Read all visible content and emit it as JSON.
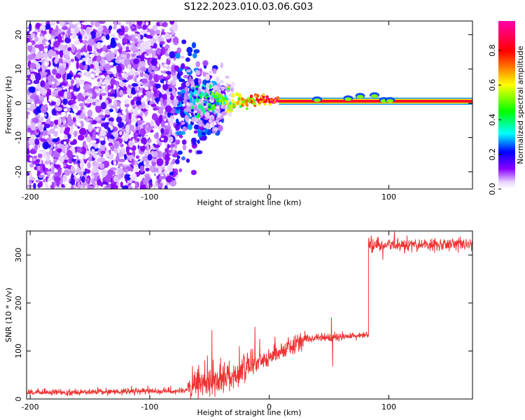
{
  "title": "S122.2023.010.03.06.G03",
  "chart_data": [
    {
      "type": "heatmap",
      "xlabel": "Height of straight line (km)",
      "ylabel": "Frequency (Hz)",
      "xlim": [
        -203,
        170
      ],
      "ylim": [
        -25,
        24
      ],
      "xticks": [
        -200,
        -100,
        0,
        100
      ],
      "yticks": [
        -20,
        -10,
        0,
        10,
        20
      ],
      "colorbar": {
        "label": "Normalized spectral amplitude",
        "ticks": [
          "0.0",
          "0.2",
          "0.4",
          "0.6",
          "0.8"
        ],
        "tick_values": [
          0,
          0.2,
          0.4,
          0.6,
          0.8
        ],
        "range": [
          0,
          0.97
        ],
        "colormap": [
          "#ffffff",
          "#e9d6ff",
          "#8a00ff",
          "#0000ff",
          "#00ffff",
          "#00ff00",
          "#ffff00",
          "#ff0000",
          "#ff00aa"
        ]
      },
      "regions": [
        {
          "x": [
            -203,
            -78
          ],
          "freq_spread": [
            -25,
            24
          ],
          "amplitude": "0.05-0.25",
          "pattern": "scattered noise"
        },
        {
          "x": [
            -78,
            -40
          ],
          "freq_spread": [
            -7,
            5
          ],
          "amplitude": "0.1-0.4",
          "pattern": "scattered noise"
        },
        {
          "x": [
            -40,
            10
          ],
          "freq_spread": [
            -1,
            3
          ],
          "amplitude": "0.3-0.9",
          "pattern": "converging tone"
        },
        {
          "x": [
            10,
            170
          ],
          "freq_center": 0.5,
          "amplitude": "0.9-1.0",
          "pattern": "steady tone"
        }
      ]
    },
    {
      "type": "line",
      "xlabel": "Height of straight line (km)",
      "ylabel": "SNR (10 * v/v)",
      "xlim": [
        -203,
        170
      ],
      "ylim": [
        0,
        350
      ],
      "xticks": [
        -200,
        -100,
        0,
        100
      ],
      "yticks": [
        0,
        100,
        200,
        300
      ],
      "color": "#ee3333",
      "segments": [
        {
          "x_start": -203,
          "x_end": -68,
          "level_start": 13,
          "level_end": 17,
          "noise": 3
        },
        {
          "x_start": -68,
          "x_end": -15,
          "level_start": 20,
          "level_end": 65,
          "noise": 15
        },
        {
          "x_start": -15,
          "x_end": 30,
          "level_start": 70,
          "level_end": 125,
          "noise": 10
        },
        {
          "x_start": 30,
          "x_end": 83,
          "level_start": 125,
          "level_end": 133,
          "noise": 4
        },
        {
          "x_start": 83,
          "x_end": 170,
          "level_start": 320,
          "level_end": 322,
          "noise": 7
        }
      ],
      "spikes": [
        {
          "x": -48,
          "y": 143
        },
        {
          "x": -47,
          "y": 82
        },
        {
          "x": -25,
          "y": 110
        },
        {
          "x": -12,
          "y": 150
        },
        {
          "x": -8,
          "y": 125
        },
        {
          "x": 52,
          "y": 170
        },
        {
          "x": 53,
          "y": 68
        },
        {
          "x": 95,
          "y": 290
        }
      ]
    }
  ]
}
